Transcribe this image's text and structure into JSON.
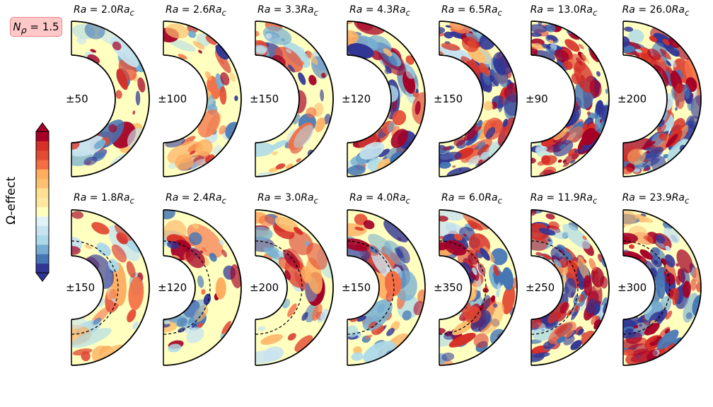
{
  "figure": {
    "badge": "N_ρ = 1.5",
    "colorbar_label": "Ω-effect",
    "colormap": [
      "#313695",
      "#4575b4",
      "#74add1",
      "#abd9e9",
      "#c7e3ef",
      "#e0f3f8",
      "#ffffbf",
      "#fee8a0",
      "#fee090",
      "#fdc070",
      "#fdae61",
      "#f46d43",
      "#e34a33",
      "#d73027",
      "#a50026"
    ]
  },
  "rows": [
    {
      "panels": [
        {
          "title": "Ra = 2.0Ra_c",
          "range": "±50"
        },
        {
          "title": "Ra = 2.6Ra_c",
          "range": "±100"
        },
        {
          "title": "Ra = 3.3Ra_c",
          "range": "±150"
        },
        {
          "title": "Ra = 4.3Ra_c",
          "range": "±120"
        },
        {
          "title": "Ra = 6.5Ra_c",
          "range": "±150"
        },
        {
          "title": "Ra = 13.0Ra_c",
          "range": "±90"
        },
        {
          "title": "Ra = 26.0Ra_c",
          "range": "±200"
        }
      ]
    },
    {
      "panels": [
        {
          "title": "Ra = 1.8Ra_c",
          "range": "±150"
        },
        {
          "title": "Ra = 2.4Ra_c",
          "range": "±120"
        },
        {
          "title": "Ra = 3.0Ra_c",
          "range": "±200"
        },
        {
          "title": "Ra = 4.0Ra_c",
          "range": "±150"
        },
        {
          "title": "Ra = 6.0Ra_c",
          "range": "±350"
        },
        {
          "title": "Ra = 11.9Ra_c",
          "range": "±250"
        },
        {
          "title": "Ra = 23.9Ra_c",
          "range": "±300"
        }
      ]
    }
  ]
}
